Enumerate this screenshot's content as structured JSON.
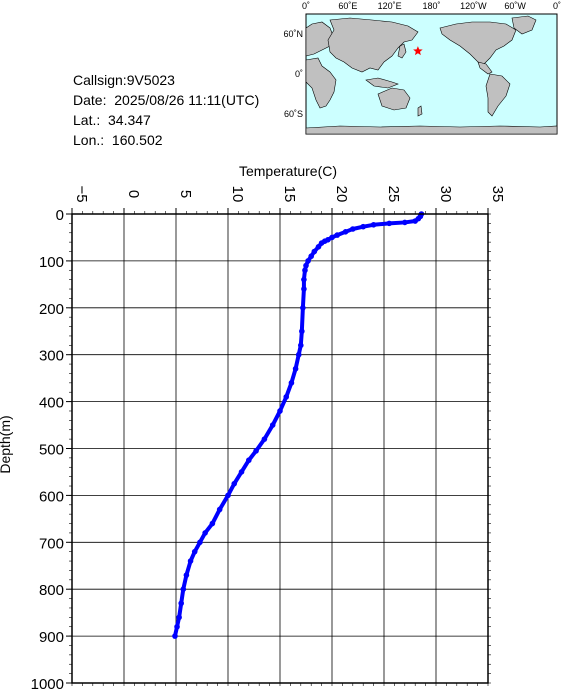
{
  "info": {
    "callsign": "Callsign:9V5023",
    "date": "Date:  2025/08/26 11:11(UTC)",
    "lat": "Lat.:  34.347",
    "lon": "Lon.:  160.502"
  },
  "map": {
    "lon_labels": [
      "0˚",
      "60˚E",
      "120˚E",
      "180˚",
      "120˚W",
      "60˚W",
      "0˚"
    ],
    "lat_labels": [
      "60˚N",
      "0˚",
      "60˚S"
    ],
    "ocean_color": "#ccffff",
    "land_color": "#c0c0c0",
    "marker": {
      "lat": 34.347,
      "lon": 160.502,
      "color": "#ff0000",
      "icon": "star-marker-icon"
    }
  },
  "chart_data": {
    "type": "line",
    "xlabel": "Temperature(C)",
    "ylabel": "Depth(m)",
    "xlim": [
      -5,
      35
    ],
    "ylim": [
      0,
      1000
    ],
    "y_inverted": true,
    "x_axis_position": "top",
    "x_ticks": [
      -5,
      0,
      5,
      10,
      15,
      20,
      25,
      30,
      35
    ],
    "y_ticks": [
      0,
      100,
      200,
      300,
      400,
      500,
      600,
      700,
      800,
      900,
      1000
    ],
    "grid": true,
    "series_color": "#0000ff",
    "series": [
      {
        "points": [
          [
            28.6,
            0
          ],
          [
            28.5,
            5
          ],
          [
            28.3,
            10
          ],
          [
            28.0,
            15
          ],
          [
            27.0,
            18
          ],
          [
            25.5,
            20
          ],
          [
            24.0,
            23
          ],
          [
            23.0,
            27
          ],
          [
            22.0,
            32
          ],
          [
            21.3,
            38
          ],
          [
            20.5,
            45
          ],
          [
            20.0,
            50
          ],
          [
            19.6,
            55
          ],
          [
            19.3,
            58
          ],
          [
            19.0,
            62
          ],
          [
            18.7,
            70
          ],
          [
            18.3,
            80
          ],
          [
            18.0,
            90
          ],
          [
            17.7,
            100
          ],
          [
            17.5,
            110
          ],
          [
            17.4,
            120
          ],
          [
            17.3,
            140
          ],
          [
            17.3,
            160
          ],
          [
            17.2,
            200
          ],
          [
            17.1,
            250
          ],
          [
            17.0,
            280
          ],
          [
            16.8,
            300
          ],
          [
            16.5,
            330
          ],
          [
            16.1,
            360
          ],
          [
            15.6,
            390
          ],
          [
            15.0,
            420
          ],
          [
            14.3,
            450
          ],
          [
            13.5,
            480
          ],
          [
            12.7,
            505
          ],
          [
            12.0,
            525
          ],
          [
            11.3,
            550
          ],
          [
            10.6,
            575
          ],
          [
            10.0,
            600
          ],
          [
            9.2,
            630
          ],
          [
            8.5,
            660
          ],
          [
            7.8,
            680
          ],
          [
            7.3,
            700
          ],
          [
            6.8,
            720
          ],
          [
            6.4,
            740
          ],
          [
            6.0,
            770
          ],
          [
            5.7,
            800
          ],
          [
            5.5,
            830
          ],
          [
            5.3,
            860
          ],
          [
            5.1,
            880
          ],
          [
            4.9,
            900
          ]
        ]
      }
    ]
  }
}
